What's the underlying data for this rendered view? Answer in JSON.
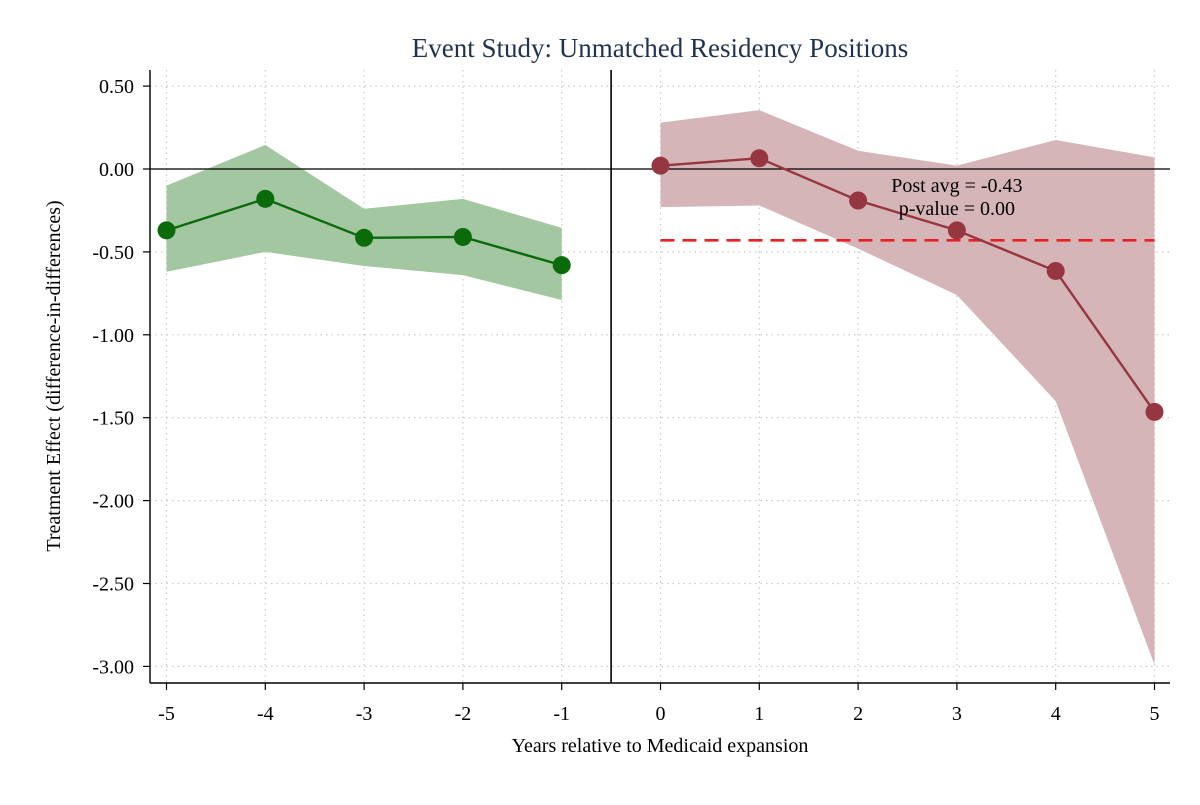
{
  "chart_data": {
    "type": "line",
    "title": "Event Study: Unmatched Residency Positions",
    "xlabel": "Years relative to Medicaid expansion",
    "ylabel": "Treatment Effect (difference-in-differences)",
    "xlim": [
      -5.15,
      5.15
    ],
    "ylim": [
      -3.1,
      0.6
    ],
    "xticks": [
      -5,
      -4,
      -3,
      -2,
      -1,
      0,
      1,
      2,
      3,
      4,
      5
    ],
    "xtick_labels": [
      "-5",
      "-4",
      "-3",
      "-2",
      "-1",
      "0",
      "1",
      "2",
      "3",
      "4",
      "5"
    ],
    "yticks": [
      0.5,
      0.0,
      -0.5,
      -1.0,
      -1.5,
      -2.0,
      -2.5,
      -3.0
    ],
    "ytick_labels": [
      "0.50",
      "0.00",
      "-0.50",
      "-1.00",
      "-1.50",
      "-2.00",
      "-2.50",
      "-3.00"
    ],
    "grid": true,
    "vertical_line_x": -0.5,
    "horizontal_line_y": 0,
    "series": [
      {
        "role": "pre",
        "color": "#0b6b0b",
        "band_color": "#a3c7a0",
        "x": [
          -5,
          -4,
          -3,
          -2,
          -1
        ],
        "y": [
          -0.37,
          -0.18,
          -0.415,
          -0.41,
          -0.58
        ],
        "ci_low": [
          -0.62,
          -0.5,
          -0.585,
          -0.64,
          -0.79
        ],
        "ci_high": [
          -0.1,
          0.145,
          -0.24,
          -0.18,
          -0.355
        ]
      },
      {
        "role": "post",
        "color": "#963640",
        "band_color": "#d6b5b8",
        "x": [
          0,
          1,
          2,
          3,
          4,
          5
        ],
        "y": [
          0.02,
          0.065,
          -0.19,
          -0.37,
          -0.615,
          -1.465
        ],
        "ci_low": [
          -0.23,
          -0.22,
          -0.48,
          -0.76,
          -1.4,
          -2.99
        ],
        "ci_high": [
          0.28,
          0.355,
          0.11,
          0.02,
          0.175,
          0.07
        ]
      }
    ],
    "post_avg_line": {
      "value": -0.43,
      "x_from": 0,
      "x_to": 5,
      "color": "#e8201f"
    },
    "annotation": {
      "x": 3,
      "line1": "Post avg = -0.43",
      "line2": "p-value = 0.00"
    }
  }
}
